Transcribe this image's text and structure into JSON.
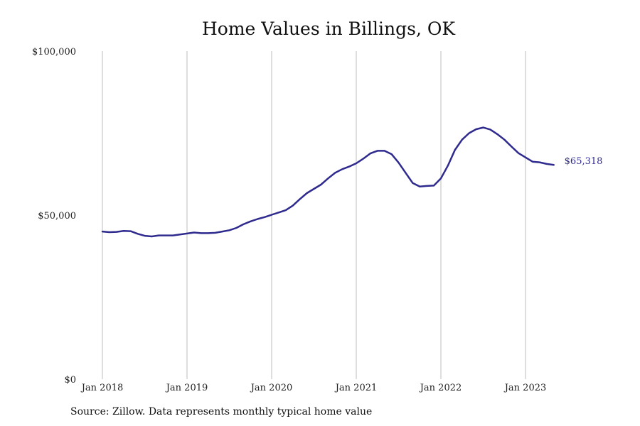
{
  "page": {
    "title": "Home Values in Billings, OK",
    "source_note": "Source: Zillow. Data represents monthly typical home value"
  },
  "chart_data": {
    "type": "line",
    "title": "Home Values in Billings, OK",
    "xlabel": "",
    "ylabel": "",
    "ylim": [
      0,
      100000
    ],
    "y_ticks": [
      {
        "value": 0,
        "label": "$0"
      },
      {
        "value": 50000,
        "label": "$50,000"
      },
      {
        "value": 100000,
        "label": "$100,000"
      }
    ],
    "x_ticks": [
      {
        "value": "2018-01",
        "label": "Jan 2018"
      },
      {
        "value": "2019-01",
        "label": "Jan 2019"
      },
      {
        "value": "2020-01",
        "label": "Jan 2020"
      },
      {
        "value": "2021-01",
        "label": "Jan 2021"
      },
      {
        "value": "2022-01",
        "label": "Jan 2022"
      },
      {
        "value": "2023-01",
        "label": "Jan 2023"
      }
    ],
    "grid": "vertical",
    "line_color": "#2e2a8e",
    "end_label": "$65,318",
    "series": [
      {
        "x": [
          "2018-01",
          "2018-02",
          "2018-03",
          "2018-04",
          "2018-05",
          "2018-06",
          "2018-07",
          "2018-08",
          "2018-09",
          "2018-10",
          "2018-11",
          "2018-12",
          "2019-01",
          "2019-02",
          "2019-03",
          "2019-04",
          "2019-05",
          "2019-06",
          "2019-07",
          "2019-08",
          "2019-09",
          "2019-10",
          "2019-11",
          "2019-12",
          "2020-01",
          "2020-02",
          "2020-03",
          "2020-04",
          "2020-05",
          "2020-06",
          "2020-07",
          "2020-08",
          "2020-09",
          "2020-10",
          "2020-11",
          "2020-12",
          "2021-01",
          "2021-02",
          "2021-03",
          "2021-04",
          "2021-05",
          "2021-06",
          "2021-07",
          "2021-08",
          "2021-09",
          "2021-10",
          "2021-11",
          "2021-12",
          "2022-01",
          "2022-02",
          "2022-03",
          "2022-04",
          "2022-05",
          "2022-06",
          "2022-07",
          "2022-08",
          "2022-09",
          "2022-10",
          "2022-11",
          "2022-12",
          "2023-01",
          "2023-02",
          "2023-03",
          "2023-04",
          "2023-05"
        ],
        "y": [
          45000,
          44800,
          44900,
          45200,
          45100,
          44300,
          43700,
          43500,
          43800,
          43800,
          43800,
          44100,
          44400,
          44700,
          44500,
          44500,
          44600,
          45000,
          45400,
          46100,
          47200,
          48100,
          48800,
          49400,
          50100,
          50800,
          51500,
          52900,
          54900,
          56700,
          58000,
          59300,
          61200,
          62900,
          64000,
          64800,
          65800,
          67200,
          68800,
          69600,
          69600,
          68600,
          66000,
          62900,
          59800,
          58700,
          58900,
          59000,
          61200,
          65100,
          69900,
          73000,
          75000,
          76200,
          76700,
          76100,
          74700,
          73000,
          70900,
          68900,
          67600,
          66300,
          66100,
          65600,
          65318
        ]
      }
    ]
  }
}
